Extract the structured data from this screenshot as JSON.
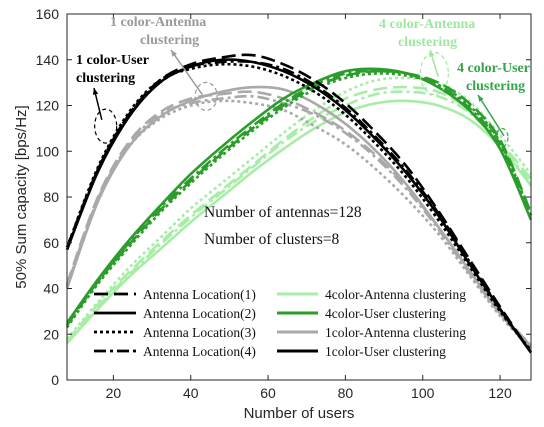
{
  "chart_data": {
    "type": "line",
    "xlabel": "Number of users",
    "ylabel": "50% Sum capacity [bps/Hz]",
    "xlim": [
      8,
      128
    ],
    "ylim": [
      0,
      160
    ],
    "xticks": [
      20,
      40,
      60,
      80,
      100,
      120
    ],
    "yticks": [
      0,
      20,
      40,
      60,
      80,
      100,
      120,
      140,
      160
    ],
    "grid": false,
    "legend_position": "bottom-center",
    "info_text": [
      "Number of antennas=128",
      "Number of clusters=8"
    ],
    "annotations": [
      {
        "lines": [
          "1 color-User",
          "clustering"
        ],
        "color": "#000000"
      },
      {
        "lines": [
          "1 color-Antenna",
          "clustering"
        ],
        "color": "#9a9a9a"
      },
      {
        "lines": [
          "4 color-Antenna",
          "clustering"
        ],
        "color": "#9de89d"
      },
      {
        "lines": [
          "4 color-User",
          "clustering"
        ],
        "color": "#33a64a"
      }
    ],
    "legend_style_entries": [
      {
        "label": "Antenna Location(1)",
        "dash": "14,6"
      },
      {
        "label": "Antenna Location(2)",
        "dash": ""
      },
      {
        "label": "Antenna Location(3)",
        "dash": "3,3"
      },
      {
        "label": "Antenna Location(4)",
        "dash": "12,4,3,4"
      }
    ],
    "legend_color_entries": [
      {
        "label": "4color-Antenna clustering",
        "color": "#a7eda7"
      },
      {
        "label": "4color-User clustering",
        "color": "#2a9d2a"
      },
      {
        "label": "1color-Antenna clustering",
        "color": "#a9a9a9"
      },
      {
        "label": "1color-User clustering",
        "color": "#000000"
      }
    ],
    "series": [
      {
        "group": "1color-User clustering",
        "color": "#000000",
        "dash": "14,6",
        "x": [
          8,
          16,
          24,
          32,
          40,
          48,
          56,
          64,
          72,
          80,
          88,
          96,
          104,
          112,
          120,
          128
        ],
        "y": [
          58,
          92,
          116,
          131,
          138,
          141,
          142,
          138,
          131,
          121,
          108,
          93,
          74,
          53,
          32,
          12
        ]
      },
      {
        "group": "1color-User clustering",
        "color": "#000000",
        "dash": "",
        "x": [
          8,
          16,
          24,
          32,
          40,
          48,
          56,
          64,
          72,
          80,
          88,
          96,
          104,
          112,
          120,
          128
        ],
        "y": [
          57,
          91,
          115,
          130,
          137,
          140,
          139,
          135,
          128,
          118,
          105,
          90,
          72,
          51,
          31,
          12
        ]
      },
      {
        "group": "1color-User clustering",
        "color": "#000000",
        "dash": "3,3",
        "x": [
          8,
          16,
          24,
          32,
          40,
          48,
          56,
          64,
          72,
          80,
          88,
          96,
          104,
          112,
          120,
          128
        ],
        "y": [
          58,
          93,
          117,
          131,
          136,
          138,
          137,
          133,
          126,
          116,
          103,
          88,
          70,
          50,
          30,
          13
        ]
      },
      {
        "group": "1color-User clustering",
        "color": "#000000",
        "dash": "12,4,3,4",
        "x": [
          8,
          16,
          24,
          32,
          40,
          48,
          56,
          64,
          72,
          80,
          88,
          96,
          104,
          112,
          120,
          128
        ],
        "y": [
          57,
          92,
          116,
          130,
          137,
          139,
          139,
          136,
          129,
          119,
          106,
          91,
          73,
          52,
          31,
          12
        ]
      },
      {
        "group": "1color-Antenna clustering",
        "color": "#a9a9a9",
        "dash": "14,6",
        "x": [
          8,
          16,
          24,
          32,
          40,
          48,
          56,
          64,
          72,
          80,
          88,
          96,
          104,
          112,
          120,
          128
        ],
        "y": [
          42,
          80,
          104,
          117,
          123,
          125,
          126,
          123,
          117,
          109,
          98,
          84,
          67,
          48,
          30,
          15
        ]
      },
      {
        "group": "1color-Antenna clustering",
        "color": "#a9a9a9",
        "dash": "",
        "x": [
          8,
          16,
          24,
          32,
          40,
          48,
          56,
          64,
          72,
          80,
          88,
          96,
          104,
          112,
          120,
          128
        ],
        "y": [
          40,
          78,
          102,
          115,
          122,
          126,
          128,
          127,
          121,
          112,
          100,
          85,
          67,
          48,
          29,
          14
        ]
      },
      {
        "group": "1color-Antenna clustering",
        "color": "#a9a9a9",
        "dash": "3,3",
        "x": [
          8,
          16,
          24,
          32,
          40,
          48,
          56,
          64,
          72,
          80,
          88,
          96,
          104,
          112,
          120,
          128
        ],
        "y": [
          41,
          79,
          102,
          114,
          120,
          122,
          121,
          118,
          111,
          103,
          92,
          79,
          64,
          46,
          28,
          14
        ]
      },
      {
        "group": "1color-Antenna clustering",
        "color": "#a9a9a9",
        "dash": "12,4,3,4",
        "x": [
          8,
          16,
          24,
          32,
          40,
          48,
          56,
          64,
          72,
          80,
          88,
          96,
          104,
          112,
          120,
          128
        ],
        "y": [
          41,
          79,
          103,
          116,
          121,
          123,
          124,
          121,
          116,
          108,
          97,
          83,
          66,
          47,
          29,
          15
        ]
      },
      {
        "group": "4color-Antenna clustering",
        "color": "#a7eda7",
        "dash": "14,6",
        "x": [
          8,
          16,
          24,
          32,
          40,
          48,
          56,
          64,
          72,
          80,
          88,
          96,
          104,
          112,
          120,
          128
        ],
        "y": [
          17,
          33,
          47,
          60,
          72,
          83,
          94,
          105,
          115,
          123,
          127,
          128,
          126,
          118,
          104,
          88
        ]
      },
      {
        "group": "4color-Antenna clustering",
        "color": "#a7eda7",
        "dash": "",
        "x": [
          8,
          16,
          24,
          32,
          40,
          48,
          56,
          64,
          72,
          80,
          88,
          96,
          104,
          112,
          120,
          128
        ],
        "y": [
          16,
          31,
          45,
          57,
          69,
          80,
          91,
          101,
          110,
          117,
          121,
          122,
          120,
          114,
          102,
          85
        ]
      },
      {
        "group": "4color-Antenna clustering",
        "color": "#a7eda7",
        "dash": "3,3",
        "x": [
          8,
          16,
          24,
          32,
          40,
          48,
          56,
          64,
          72,
          80,
          88,
          96,
          104,
          112,
          120,
          128
        ],
        "y": [
          18,
          34,
          49,
          62,
          75,
          86,
          97,
          108,
          118,
          126,
          131,
          132,
          130,
          122,
          107,
          90
        ]
      },
      {
        "group": "4color-Antenna clustering",
        "color": "#a7eda7",
        "dash": "12,4,3,4",
        "x": [
          8,
          16,
          24,
          32,
          40,
          48,
          56,
          64,
          72,
          80,
          88,
          96,
          104,
          112,
          120,
          128
        ],
        "y": [
          17,
          32,
          46,
          59,
          71,
          82,
          93,
          104,
          113,
          120,
          125,
          126,
          124,
          117,
          103,
          86
        ]
      },
      {
        "group": "4color-User clustering",
        "color": "#2a9d2a",
        "dash": "14,6",
        "x": [
          8,
          16,
          24,
          32,
          40,
          48,
          56,
          64,
          72,
          80,
          88,
          96,
          104,
          112,
          120,
          128
        ],
        "y": [
          24,
          43,
          59,
          74,
          87,
          99,
          110,
          120,
          128,
          133,
          135,
          134,
          130,
          121,
          105,
          73
        ]
      },
      {
        "group": "4color-User clustering",
        "color": "#2a9d2a",
        "dash": "",
        "x": [
          8,
          16,
          24,
          32,
          40,
          48,
          56,
          64,
          72,
          80,
          88,
          96,
          104,
          112,
          120,
          128
        ],
        "y": [
          25,
          44,
          61,
          76,
          90,
          102,
          113,
          123,
          130,
          135,
          136,
          134,
          128,
          118,
          101,
          70
        ]
      },
      {
        "group": "4color-User clustering",
        "color": "#2a9d2a",
        "dash": "3,3",
        "x": [
          8,
          16,
          24,
          32,
          40,
          48,
          56,
          64,
          72,
          80,
          88,
          96,
          104,
          112,
          120,
          128
        ],
        "y": [
          23,
          42,
          58,
          73,
          86,
          98,
          109,
          119,
          127,
          132,
          134,
          133,
          129,
          120,
          104,
          72
        ]
      },
      {
        "group": "4color-User clustering",
        "color": "#2a9d2a",
        "dash": "12,4,3,4",
        "x": [
          8,
          16,
          24,
          32,
          40,
          48,
          56,
          64,
          72,
          80,
          88,
          96,
          104,
          112,
          120,
          128
        ],
        "y": [
          24,
          43,
          60,
          75,
          88,
          100,
          111,
          121,
          129,
          134,
          135,
          134,
          129,
          119,
          103,
          71
        ]
      }
    ]
  }
}
